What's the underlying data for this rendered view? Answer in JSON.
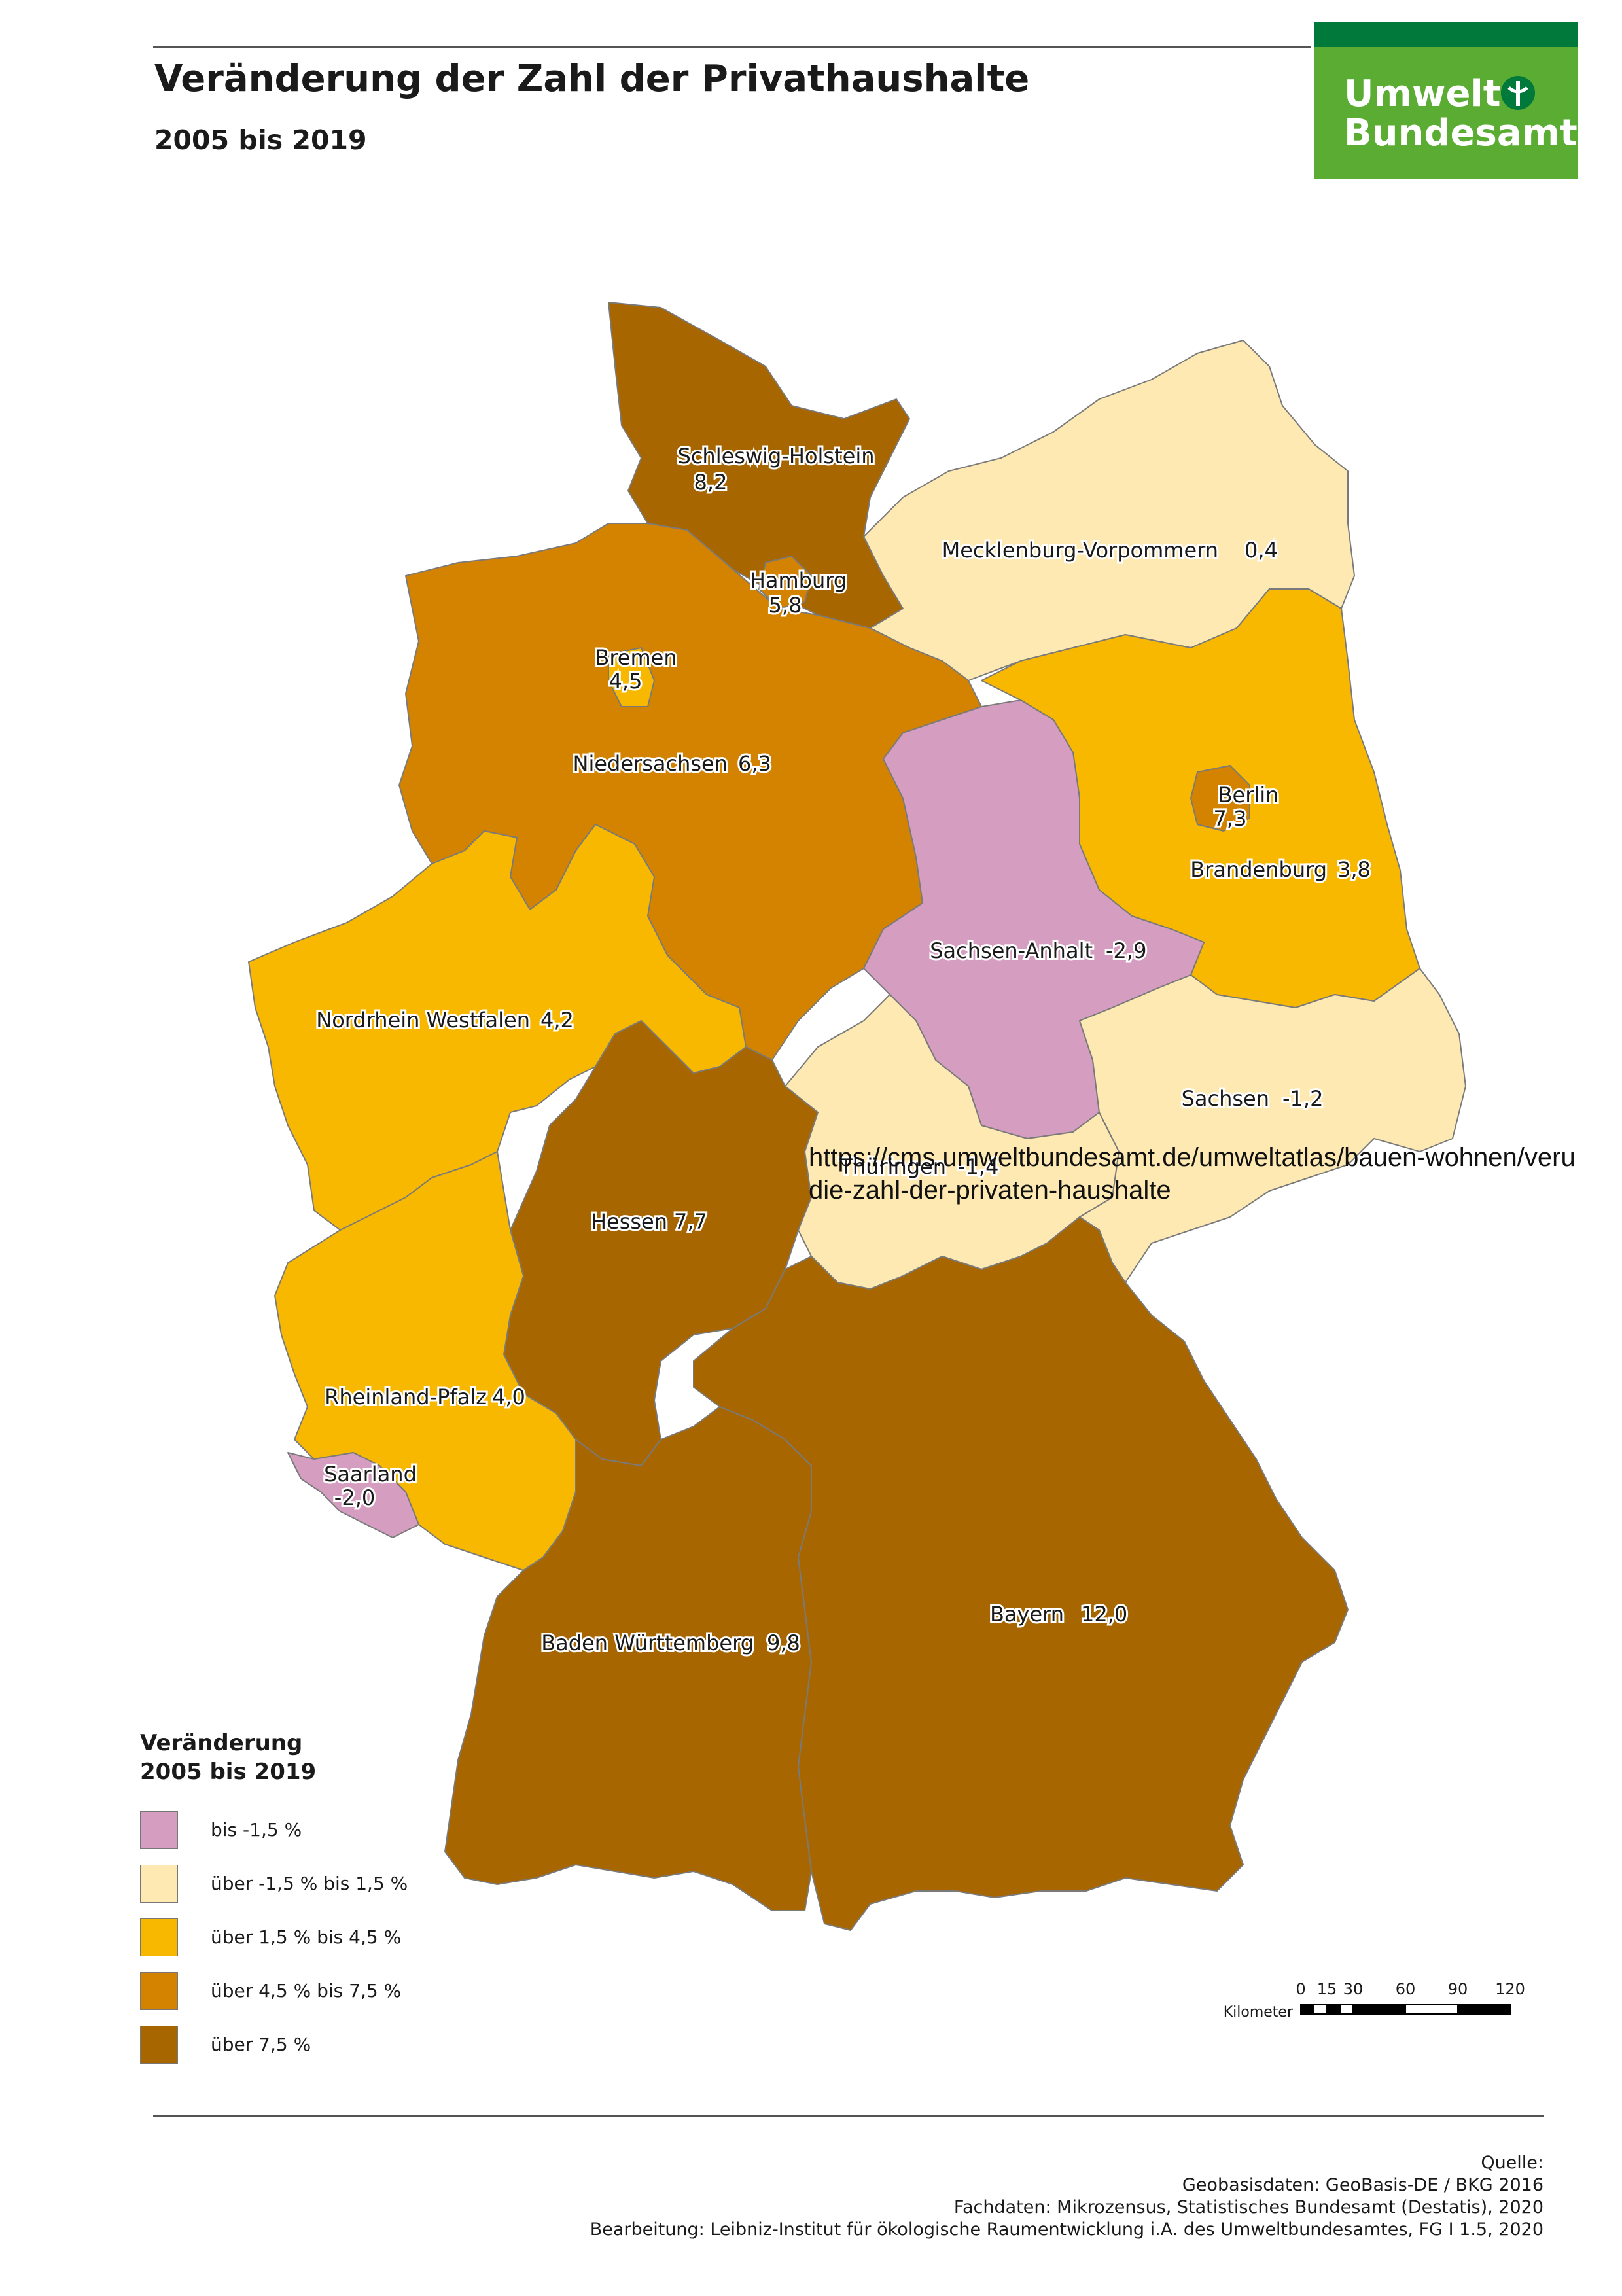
{
  "header": {
    "title": "Veränderung der Zahl der Privathaushalte",
    "subtitle": "2005 bis 2019"
  },
  "logo": {
    "line1": "Umwelt",
    "line2": "Bundesamt"
  },
  "states": [
    {
      "name": "Schleswig-Holstein",
      "value": "8,2",
      "class": "über 7,5 %"
    },
    {
      "name": "Hamburg",
      "value": "5,8",
      "class": "über 4,5 % bis 7,5 %"
    },
    {
      "name": "Mecklenburg-Vorpommern",
      "value": "0,4",
      "class": "über -1,5 % bis 1,5 %"
    },
    {
      "name": "Bremen",
      "value": "4,5",
      "class": "über 1,5 % bis 4,5 %"
    },
    {
      "name": "Niedersachsen",
      "value": "6,3",
      "class": "über 4,5 % bis 7,5 %"
    },
    {
      "name": "Berlin",
      "value": "7,3",
      "class": "über 4,5 % bis 7,5 %"
    },
    {
      "name": "Brandenburg",
      "value": "3,8",
      "class": "über 1,5 % bis 4,5 %"
    },
    {
      "name": "Sachsen-Anhalt",
      "value": "-2,9",
      "class": "bis -1,5 %"
    },
    {
      "name": "Nordrhein Westfalen",
      "value": "4,2",
      "class": "über 1,5 % bis 4,5 %"
    },
    {
      "name": "Sachsen",
      "value": "-1,2",
      "class": "über -1,5 % bis 1,5 %"
    },
    {
      "name": "Thüringen",
      "value": "-1,4",
      "class": "über -1,5 % bis 1,5 %"
    },
    {
      "name": "Hessen",
      "value": "7,7",
      "class": "über 7,5 %"
    },
    {
      "name": "Rheinland-Pfalz",
      "value": "4,0",
      "class": "über 1,5 % bis 4,5 %"
    },
    {
      "name": "Saarland",
      "value": "-2,0",
      "class": "bis -1,5 %"
    },
    {
      "name": "Baden Württemberg",
      "value": "9,8",
      "class": "über 7,5 %"
    },
    {
      "name": "Bayern",
      "value": "12,0",
      "class": "über 7,5 %"
    }
  ],
  "colors": {
    "bis -1,5 %": "#d59ec0",
    "über -1,5 % bis 1,5 %": "#fde9b1",
    "über 1,5 % bis 4,5 %": "#f8b800",
    "über 4,5 % bis 7,5 %": "#d38300",
    "über 7,5 %": "#a86600",
    "logo_green": "#5aac33",
    "logo_dark_green": "#00793a"
  },
  "legend": {
    "title_line1": "Veränderung",
    "title_line2": "2005 bis 2019",
    "items": [
      {
        "label": "bis -1,5 %",
        "color": "#d59ec0"
      },
      {
        "label": "über -1,5 % bis 1,5 %",
        "color": "#fde9b1"
      },
      {
        "label": "über 1,5 % bis 4,5 %",
        "color": "#f8b800"
      },
      {
        "label": "über 4,5 % bis 7,5 %",
        "color": "#d38300"
      },
      {
        "label": "über 7,5 %",
        "color": "#a86600"
      }
    ]
  },
  "scale": {
    "unit_label": "Kilometer",
    "ticks": [
      "0",
      "15",
      "30",
      "60",
      "90",
      "120"
    ]
  },
  "overlay_url": {
    "line1": "https://cms.umweltbundesamt.de/umweltatlas/bauen-wohnen/veru",
    "line2": "die-zahl-der-privaten-haushalte"
  },
  "sources": {
    "heading": "Quelle:",
    "line1": "Geobasisdaten: GeoBasis-DE / BKG 2016",
    "line2": "Fachdaten: Mikrozensus, Statistisches Bundesamt (Destatis), 2020",
    "line3": "Bearbeitung: Leibniz-Institut für ökologische Raumentwicklung i.A. des Umweltbundesamtes, FG I 1.5, 2020"
  }
}
